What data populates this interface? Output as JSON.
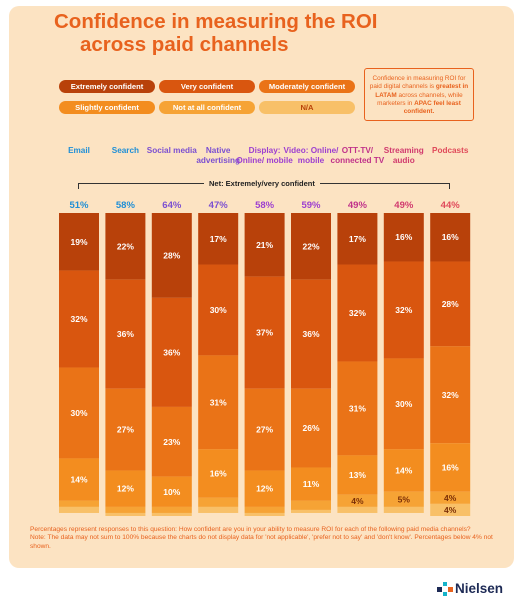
{
  "title_line1": "Confidence in measuring the ROI",
  "title_line2": "across paid channels",
  "legend": [
    {
      "label": "Extremely confident",
      "color": "#b8410a"
    },
    {
      "label": "Very confident",
      "color": "#d9560f"
    },
    {
      "label": "Moderately confident",
      "color": "#ea7317"
    },
    {
      "label": "Slightly confident",
      "color": "#f38d1f"
    },
    {
      "label": "Not at all confident",
      "color": "#f6a335"
    },
    {
      "label": "N/A",
      "color": "#f8c068"
    }
  ],
  "note": {
    "part1": "Confidence in measuring ROI for paid digital channels is ",
    "bold": "greatest in LATAM",
    "part2": " across channels, while marketers in ",
    "bold2": "APAC feel least confident."
  },
  "net_label": "Net: Extremely/very confident",
  "footnote": {
    "line1": "Percentages represent responses to this question: How confident are you in your ability to measure ROI for each of the following paid media channels?",
    "line2": "Note: The data may not sum to 100% because the charts do not display data for 'not applicable', 'prefer not to say' and 'don't know'. Percentages below 4% not shown."
  },
  "brand": "Nielsen",
  "chart_data": {
    "type": "bar",
    "stacked": true,
    "categories": [
      "Email",
      "Search",
      "Social media",
      "Native advertising",
      "Display: Online/ mobile",
      "Video: Online/ mobile",
      "OTT-TV/ connected TV",
      "Streaming audio",
      "Podcasts"
    ],
    "category_colors": [
      "#1f8fd6",
      "#1f8fd6",
      "#7b4fd1",
      "#7b4fd1",
      "#9d3fd0",
      "#9d3fd0",
      "#c0328a",
      "#d13a6e",
      "#e04a5a"
    ],
    "net": [
      "51%",
      "58%",
      "64%",
      "47%",
      "58%",
      "59%",
      "49%",
      "49%",
      "44%"
    ],
    "series": [
      {
        "name": "Extremely confident",
        "values": [
          19,
          22,
          28,
          17,
          21,
          22,
          17,
          16,
          16
        ]
      },
      {
        "name": "Very confident",
        "values": [
          32,
          36,
          36,
          30,
          37,
          36,
          32,
          32,
          28
        ]
      },
      {
        "name": "Moderately confident",
        "values": [
          30,
          27,
          23,
          31,
          27,
          26,
          31,
          30,
          32
        ]
      },
      {
        "name": "Slightly confident",
        "values": [
          14,
          12,
          10,
          16,
          12,
          11,
          13,
          14,
          16
        ]
      },
      {
        "name": "Not at all confident",
        "values": [
          2,
          2,
          2,
          3,
          2,
          3,
          4,
          5,
          4
        ]
      },
      {
        "name": "N/A",
        "values": [
          2,
          1,
          1,
          2,
          1,
          1,
          2,
          2,
          4
        ]
      }
    ],
    "ylim": [
      0,
      100
    ]
  }
}
